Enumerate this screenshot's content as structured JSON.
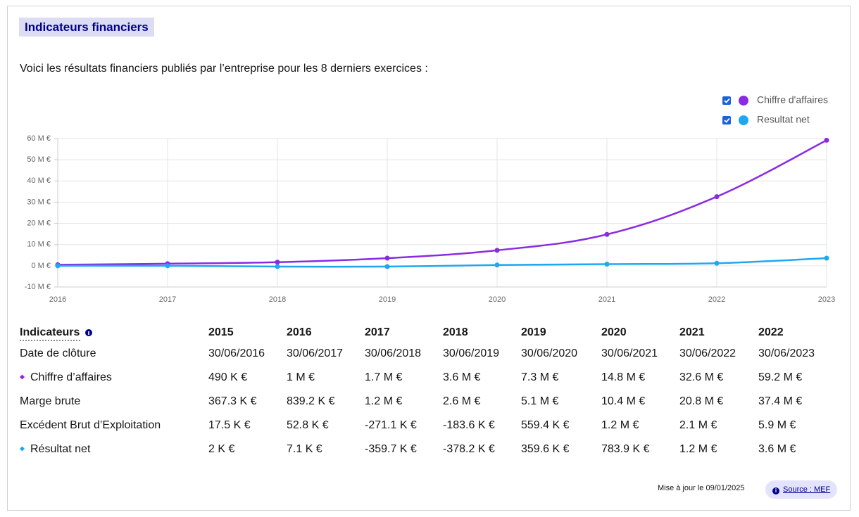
{
  "header": {
    "title": "Indicateurs financiers",
    "intro": "Voici les résultats financiers publiés par l’entreprise pour les 8 derniers exercices :"
  },
  "chart_data": {
    "type": "line",
    "x": [
      2016,
      2017,
      2018,
      2019,
      2020,
      2021,
      2022,
      2023
    ],
    "series": [
      {
        "name": "Chiffre d'affaires",
        "color": "#8a2be2",
        "values": [
          0.49,
          1,
          1.7,
          3.6,
          7.3,
          14.8,
          32.6,
          59.2
        ]
      },
      {
        "name": "Resultat net",
        "color": "#1fa8f0",
        "values": [
          0.002,
          0.0071,
          -0.3597,
          -0.3782,
          0.3596,
          0.7839,
          1.2,
          3.6
        ]
      }
    ],
    "xlim": [
      2016,
      2023
    ],
    "xticks": [
      2016,
      2017,
      2018,
      2019,
      2020,
      2021,
      2022,
      2023
    ],
    "ylim": [
      -10,
      60
    ],
    "yticks": [
      {
        "value": -10,
        "label": "-10 M €"
      },
      {
        "value": 0,
        "label": "0 M €"
      },
      {
        "value": 10,
        "label": "10 M €"
      },
      {
        "value": 20,
        "label": "20 M €"
      },
      {
        "value": 30,
        "label": "30 M €"
      },
      {
        "value": 40,
        "label": "40 M €"
      },
      {
        "value": 50,
        "label": "50 M €"
      },
      {
        "value": 60,
        "label": "60 M €"
      }
    ],
    "grid": true,
    "legend": "top-right"
  },
  "table": {
    "header": [
      "Indicateurs",
      "2015",
      "2016",
      "2017",
      "2018",
      "2019",
      "2020",
      "2021",
      "2022"
    ],
    "rows": [
      [
        "Date de clôture",
        "30/06/2016",
        "30/06/2017",
        "30/06/2018",
        "30/06/2019",
        "30/06/2020",
        "30/06/2021",
        "30/06/2022",
        "30/06/2023"
      ],
      [
        "Chiffre d’affaires",
        "490 K €",
        "1 M €",
        "1.7 M €",
        "3.6 M €",
        "7.3 M €",
        "14.8 M €",
        "32.6 M €",
        "59.2 M €"
      ],
      [
        "Marge brute",
        "367.3 K €",
        "839.2 K €",
        "1.2 M €",
        "2.6 M €",
        "5.1 M €",
        "10.4 M €",
        "20.8 M €",
        "37.4 M €"
      ],
      [
        "Excédent Brut d’Exploitation",
        "17.5 K €",
        "52.8 K €",
        "-271.1 K €",
        "-183.6 K €",
        "559.4 K €",
        "1.2 M €",
        "2.1 M €",
        "5.9 M €"
      ],
      [
        "Résultat net",
        "2 K €",
        "7.1 K €",
        "-359.7 K €",
        "-378.2 K €",
        "359.6 K €",
        "783.9 K €",
        "1.2 M €",
        "3.6 M €"
      ]
    ]
  },
  "footer": {
    "updated": "Mise à jour le 09/01/2025",
    "source": "Source : MEF"
  }
}
